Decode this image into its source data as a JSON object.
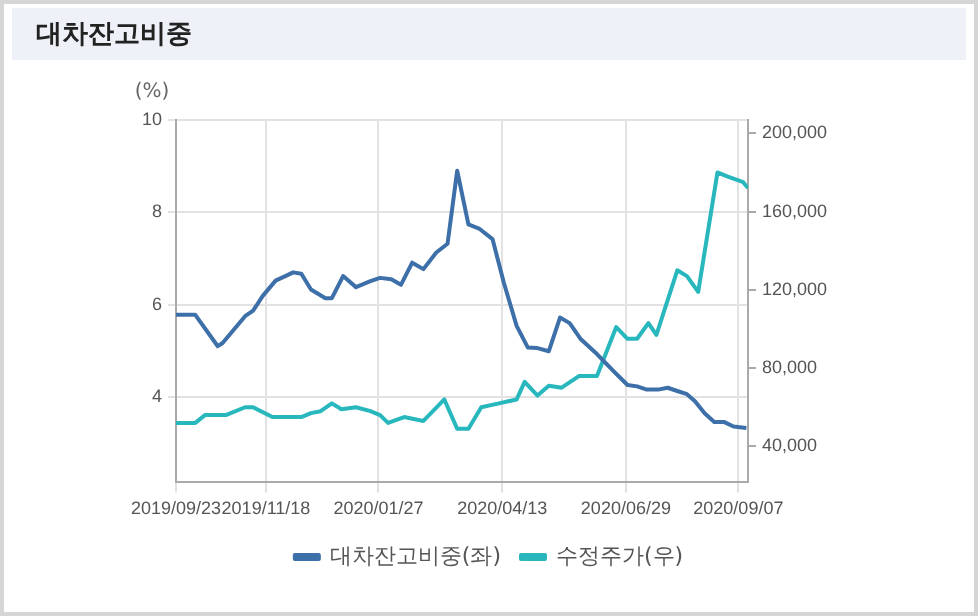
{
  "chart_data": {
    "type": "line",
    "title": "대차잔고비중",
    "ylabel": "(%)",
    "xlim": [
      "2019-09-23",
      "2020-09-13"
    ],
    "xticks": [
      {
        "value": "2019-09-23",
        "label": "2019/09/23"
      },
      {
        "value": "2019-11-18",
        "label": "2019/11/18"
      },
      {
        "value": "2020-01-27",
        "label": "2020/01/27"
      },
      {
        "value": "2020-04-13",
        "label": "2020/04/13"
      },
      {
        "value": "2020-06-29",
        "label": "2020/06/29"
      },
      {
        "value": "2020-09-07",
        "label": "2020/09/07"
      }
    ],
    "ylim": [
      2.15,
      10
    ],
    "yticks": [
      4,
      6,
      8,
      10
    ],
    "y2lim": [
      21600,
      206800
    ],
    "y2ticks": [
      {
        "value": 40000,
        "label": "40,000"
      },
      {
        "value": 80000,
        "label": "80,000"
      },
      {
        "value": 120000,
        "label": "120,000"
      },
      {
        "value": 160000,
        "label": "160,000"
      },
      {
        "value": 200000,
        "label": "200,000"
      }
    ],
    "grid": true,
    "legend": "bottom",
    "marker": "none",
    "line_style": "solid",
    "series": [
      {
        "name": "대차잔고비중(좌)",
        "color": "#3d6fa8",
        "x": [
          "2019-09-23",
          "2019-10-05",
          "2019-10-19",
          "2019-10-22",
          "2019-11-05",
          "2019-11-10",
          "2019-11-16",
          "2019-11-24",
          "2019-12-05",
          "2019-12-10",
          "2019-12-16",
          "2019-12-25",
          "2019-12-29",
          "2020-01-05",
          "2020-01-13",
          "2020-01-22",
          "2020-01-28",
          "2020-02-04",
          "2020-02-10",
          "2020-02-17",
          "2020-02-24",
          "2020-03-03",
          "2020-03-10",
          "2020-03-16",
          "2020-03-23",
          "2020-03-30",
          "2020-04-07",
          "2020-04-14",
          "2020-04-22",
          "2020-04-29",
          "2020-05-05",
          "2020-05-12",
          "2020-05-19",
          "2020-05-25",
          "2020-06-01",
          "2020-06-11",
          "2020-06-21",
          "2020-06-30",
          "2020-07-06",
          "2020-07-12",
          "2020-07-19",
          "2020-07-25",
          "2020-07-31",
          "2020-08-06",
          "2020-08-11",
          "2020-08-17",
          "2020-08-23",
          "2020-08-29",
          "2020-09-04",
          "2020-09-12"
        ],
        "values": [
          5.78,
          5.78,
          5.1,
          5.17,
          5.75,
          5.87,
          6.19,
          6.52,
          6.7,
          6.67,
          6.33,
          6.14,
          6.14,
          6.62,
          6.38,
          6.51,
          6.58,
          6.55,
          6.43,
          6.91,
          6.77,
          7.13,
          7.32,
          8.9,
          7.74,
          7.64,
          7.42,
          6.48,
          5.54,
          5.07,
          5.06,
          4.99,
          5.72,
          5.6,
          5.25,
          4.93,
          4.57,
          4.26,
          4.23,
          4.16,
          4.16,
          4.2,
          4.13,
          4.06,
          3.91,
          3.65,
          3.46,
          3.46,
          3.36,
          3.33
        ]
      },
      {
        "name": "수정주가(우)",
        "color": "#27b7bd",
        "axis": "y2",
        "x": [
          "2019-09-23",
          "2019-10-05",
          "2019-10-11",
          "2019-10-24",
          "2019-11-05",
          "2019-11-10",
          "2019-11-22",
          "2019-12-10",
          "2019-12-16",
          "2019-12-22",
          "2019-12-29",
          "2020-01-04",
          "2020-01-13",
          "2020-01-22",
          "2020-01-28",
          "2020-02-02",
          "2020-02-12",
          "2020-02-24",
          "2020-03-08",
          "2020-03-16",
          "2020-03-23",
          "2020-03-31",
          "2020-04-11",
          "2020-04-22",
          "2020-04-27",
          "2020-05-05",
          "2020-05-12",
          "2020-05-20",
          "2020-05-31",
          "2020-06-11",
          "2020-06-23",
          "2020-06-30",
          "2020-07-06",
          "2020-07-13",
          "2020-07-18",
          "2020-07-31",
          "2020-08-06",
          "2020-08-13",
          "2020-08-25",
          "2020-08-31",
          "2020-09-10",
          "2020-09-13"
        ],
        "values": [
          52000,
          52000,
          56000,
          56000,
          60000,
          60000,
          55000,
          55000,
          57000,
          58000,
          62000,
          59000,
          60000,
          58000,
          56000,
          52000,
          55000,
          53000,
          64000,
          49000,
          49000,
          60000,
          62000,
          64000,
          73000,
          66000,
          71000,
          70000,
          76000,
          76000,
          101000,
          95000,
          95000,
          103000,
          97000,
          130000,
          127000,
          119000,
          180000,
          178000,
          175000,
          172000
        ]
      }
    ]
  }
}
